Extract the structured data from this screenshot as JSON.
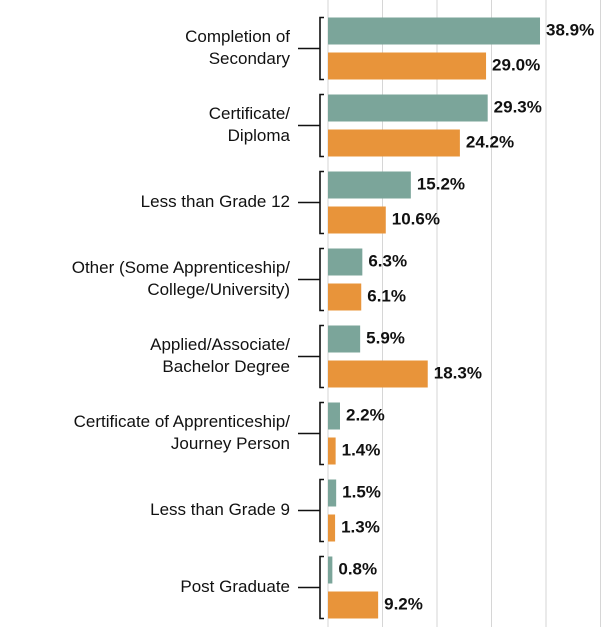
{
  "chart_data": {
    "type": "bar",
    "orientation": "horizontal",
    "categories": [
      [
        "Completion of",
        "Secondary"
      ],
      [
        "Certificate/",
        "Diploma"
      ],
      [
        "Less than Grade 12"
      ],
      [
        "Other (Some Apprenticeship/",
        "College/University)"
      ],
      [
        "Applied/Associate/",
        "Bachelor Degree"
      ],
      [
        "Certificate of Apprenticeship/",
        "Journey Person"
      ],
      [
        "Less than Grade 9"
      ],
      [
        "Post Graduate"
      ]
    ],
    "series": [
      {
        "color": "#7ba59a",
        "values": [
          38.9,
          29.3,
          15.2,
          6.3,
          5.9,
          2.2,
          1.5,
          0.8
        ],
        "value_labels": [
          "38.9%",
          "29.3%",
          "15.2%",
          "6.3%",
          "5.9%",
          "2.2%",
          "1.5%",
          "0.8%"
        ]
      },
      {
        "color": "#e8943a",
        "values": [
          29.0,
          24.2,
          10.6,
          6.1,
          18.3,
          1.4,
          1.3,
          9.2
        ],
        "value_labels": [
          "29.0%",
          "24.2%",
          "10.6%",
          "6.1%",
          "18.3%",
          "1.4%",
          "1.3%",
          "9.2%"
        ]
      }
    ],
    "xlim": [
      0,
      50
    ],
    "xticks": [
      0,
      10,
      20,
      30,
      40,
      50
    ],
    "grid": true
  }
}
